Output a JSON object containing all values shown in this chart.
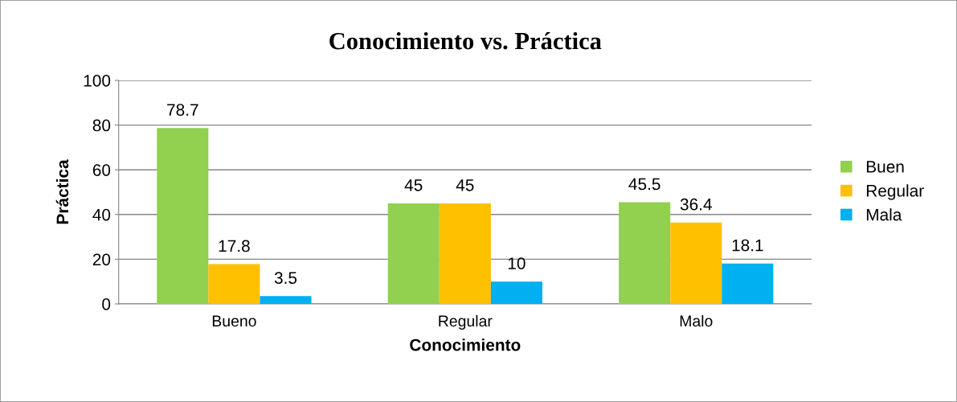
{
  "chart_data": {
    "type": "bar",
    "title": "Conocimiento vs. Práctica",
    "xlabel": "Conocimiento",
    "ylabel": "Práctica",
    "categories": [
      "Bueno",
      "Regular",
      "Malo"
    ],
    "series": [
      {
        "name": "Buen",
        "color": "#92d050",
        "values": [
          78.7,
          45,
          45.5
        ]
      },
      {
        "name": "Regular",
        "color": "#ffc000",
        "values": [
          17.8,
          45,
          36.4
        ]
      },
      {
        "name": "Mala",
        "color": "#00b0f0",
        "values": [
          3.5,
          10,
          18.1
        ]
      }
    ],
    "ylim": [
      0,
      100
    ],
    "yticks": [
      0,
      20,
      40,
      60,
      80,
      100
    ],
    "grid": "y",
    "legend": "right",
    "data_labels": true
  }
}
